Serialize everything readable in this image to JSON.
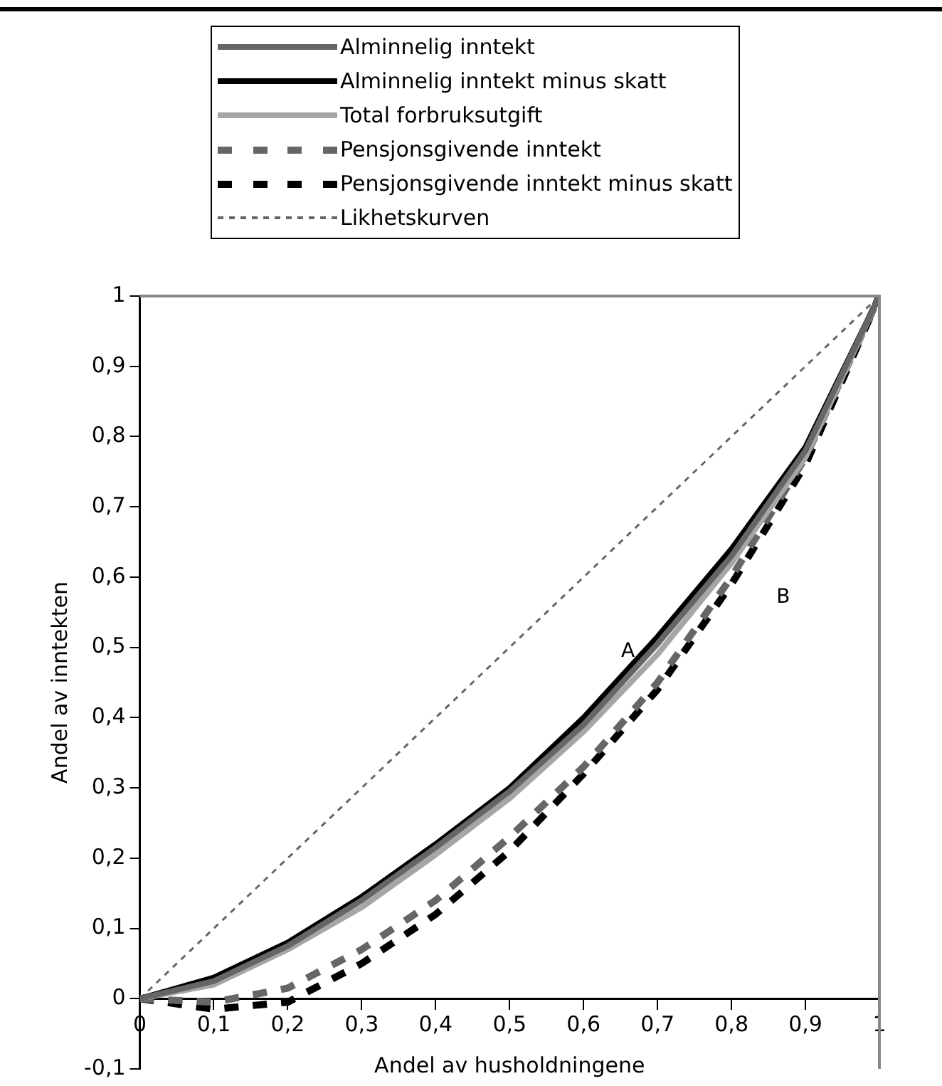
{
  "chart_data": {
    "type": "line",
    "xlabel": "Andel av husholdningene",
    "ylabel": "Andel av inntekten",
    "x": [
      0,
      0.1,
      0.2,
      0.3,
      0.4,
      0.5,
      0.6,
      0.7,
      0.8,
      0.9,
      1
    ],
    "series": [
      {
        "name": "Alminnelig inntekt",
        "color": "#666666",
        "line_style": "solid",
        "values": [
          0,
          0.025,
          0.075,
          0.14,
          0.215,
          0.295,
          0.39,
          0.505,
          0.63,
          0.78,
          1
        ]
      },
      {
        "name": "Alminnelig inntekt minus skatt",
        "color": "#000000",
        "line_style": "solid",
        "values": [
          0,
          0.03,
          0.08,
          0.145,
          0.22,
          0.3,
          0.4,
          0.515,
          0.64,
          0.785,
          1
        ]
      },
      {
        "name": "Total forbruksutgift",
        "color": "#a6a6a6",
        "line_style": "solid",
        "values": [
          0,
          0.02,
          0.07,
          0.13,
          0.205,
          0.285,
          0.38,
          0.49,
          0.62,
          0.77,
          1
        ]
      },
      {
        "name": "Pensjonsgivende inntekt",
        "color": "#666666",
        "line_style": "dashed",
        "values": [
          0,
          -0.005,
          0.015,
          0.07,
          0.14,
          0.23,
          0.33,
          0.45,
          0.6,
          0.77,
          1
        ]
      },
      {
        "name": "Pensjonsgivende inntekt minus skatt",
        "color": "#000000",
        "line_style": "dashed",
        "values": [
          0,
          -0.015,
          -0.005,
          0.05,
          0.12,
          0.21,
          0.32,
          0.44,
          0.59,
          0.76,
          1
        ]
      },
      {
        "name": "Likhetskurven",
        "color": "#666666",
        "line_style": "dotted",
        "values": [
          0,
          0.1,
          0.2,
          0.3,
          0.4,
          0.5,
          0.6,
          0.7,
          0.8,
          0.9,
          1
        ]
      }
    ],
    "xlim": [
      0,
      1
    ],
    "xticks": [
      0,
      {
        "value": 0.1,
        "label": "0,1"
      },
      {
        "value": 0.2,
        "label": "0,2"
      },
      {
        "value": 0.3,
        "label": "0,3"
      },
      {
        "value": 0.4,
        "label": "0,4"
      },
      {
        "value": 0.5,
        "label": "0,5"
      },
      {
        "value": 0.6,
        "label": "0,6"
      },
      {
        "value": 0.7,
        "label": "0,7"
      },
      {
        "value": 0.8,
        "label": "0,8"
      },
      {
        "value": 0.9,
        "label": "0,9"
      },
      1
    ],
    "ylim": [
      -0.1,
      1
    ],
    "yticks": [
      {
        "value": -0.1,
        "label": "-0,1"
      },
      0,
      {
        "value": 0.1,
        "label": "0,1"
      },
      {
        "value": 0.2,
        "label": "0,2"
      },
      {
        "value": 0.3,
        "label": "0,3"
      },
      {
        "value": 0.4,
        "label": "0,4"
      },
      {
        "value": 0.5,
        "label": "0,5"
      },
      {
        "value": 0.6,
        "label": "0,6"
      },
      {
        "value": 0.7,
        "label": "0,7"
      },
      {
        "value": 0.8,
        "label": "0,8"
      },
      {
        "value": 0.9,
        "label": "0,9"
      },
      1
    ],
    "annotations": [
      "A",
      "B"
    ],
    "grid": false,
    "legend": "top",
    "marker": "none"
  }
}
